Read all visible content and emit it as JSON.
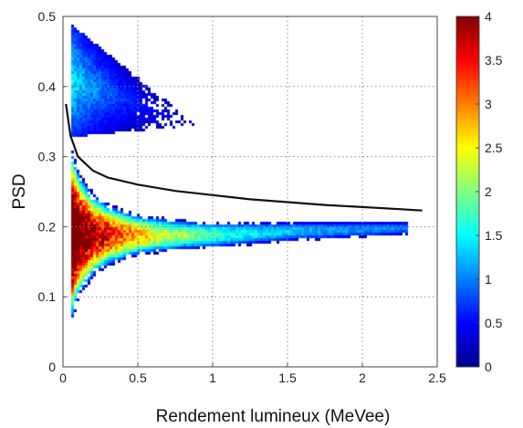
{
  "chart_data": {
    "type": "heatmap",
    "title": "",
    "xlabel": "Rendement lumineux (MeVee)",
    "ylabel": "PSD",
    "xlim": [
      0,
      2.5
    ],
    "ylim": [
      0,
      0.5
    ],
    "xticks": [
      0,
      0.5,
      1,
      1.5,
      2,
      2.5
    ],
    "xtick_labels": [
      "0",
      "0.5",
      "1",
      "1.5",
      "2",
      "2.5"
    ],
    "yticks": [
      0,
      0.1,
      0.2,
      0.3,
      0.4,
      0.5
    ],
    "ytick_labels": [
      "0",
      "0.1",
      "0.2",
      "0.3",
      "0.4",
      "0.5"
    ],
    "grid": true,
    "grid_style": "dotted",
    "colormap": "jet",
    "colorbar": {
      "range": [
        0,
        4
      ],
      "ticks": [
        0,
        0.5,
        1,
        1.5,
        2,
        2.5,
        3,
        3.5,
        4
      ],
      "tick_labels": [
        "0",
        "0.5",
        "1",
        "1.5",
        "2",
        "2.5",
        "3",
        "3.5",
        "4"
      ]
    },
    "gamma_band": {
      "description_points_x": [
        0.05,
        0.1,
        0.2,
        0.3,
        0.5,
        0.8,
        1.0,
        1.5,
        2.0,
        2.3
      ],
      "center_psd": [
        0.19,
        0.19,
        0.19,
        0.19,
        0.19,
        0.19,
        0.19,
        0.195,
        0.198,
        0.2
      ],
      "half_width_psd": [
        0.13,
        0.09,
        0.06,
        0.045,
        0.03,
        0.022,
        0.02,
        0.015,
        0.012,
        0.01
      ],
      "peak_value": 4
    },
    "neutron_band": {
      "x_range": [
        0.05,
        0.9
      ],
      "psd_range": [
        0.33,
        0.49
      ],
      "peak_value": 1.7
    },
    "discrimination_curve": {
      "x": [
        0.02,
        0.05,
        0.1,
        0.2,
        0.3,
        0.5,
        0.75,
        1.0,
        1.25,
        1.5,
        1.75,
        2.0,
        2.25,
        2.4
      ],
      "y": [
        0.375,
        0.33,
        0.3,
        0.28,
        0.27,
        0.26,
        0.251,
        0.245,
        0.239,
        0.235,
        0.231,
        0.228,
        0.225,
        0.223
      ],
      "color": "#111111"
    }
  }
}
